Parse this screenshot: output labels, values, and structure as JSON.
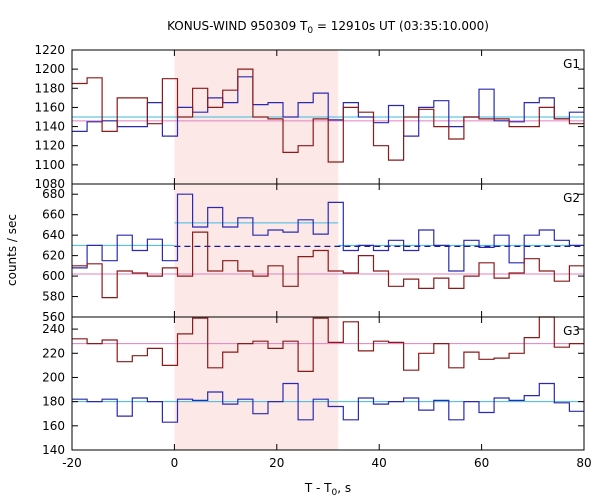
{
  "chart_data": {
    "type": "line",
    "title_prefix": "KONUS-WIND 950309 T",
    "title_sub": "0",
    "title_suffix": " = 12910s UT (03:35:10.000)",
    "xlabel_prefix": "T - T",
    "xlabel_sub": "0",
    "xlabel_suffix": ", s",
    "ylabel": "counts / sec",
    "xlim": [
      -20,
      80
    ],
    "xticks": [
      -20,
      0,
      20,
      40,
      60,
      80
    ],
    "highlight": {
      "x_start": 0,
      "x_end": 32,
      "color": "#fde8e8"
    },
    "bin_width": 2.944,
    "colors": {
      "red": "#8b1a1a",
      "blue": "#2a2ab0",
      "pink": "#e080c0",
      "cyan": "#40b8e0"
    },
    "panels": [
      {
        "label": "G1",
        "ylim": [
          1080,
          1220
        ],
        "yticks": [
          1080,
          1100,
          1120,
          1140,
          1160,
          1180,
          1200,
          1220
        ],
        "red": [
          1185,
          1191,
          1135,
          1170,
          1170,
          1143,
          1190,
          1150,
          1180,
          1160,
          1178,
          1200,
          1150,
          1148,
          1113,
          1120,
          1148,
          1103,
          1160,
          1155,
          1120,
          1105,
          1150,
          1158,
          1140,
          1127,
          1150,
          1148,
          1148,
          1140,
          1140,
          1160,
          1148,
          1143
        ],
        "blue": [
          1135,
          1145,
          1146,
          1140,
          1140,
          1165,
          1130,
          1160,
          1155,
          1170,
          1165,
          1192,
          1163,
          1165,
          1150,
          1165,
          1175,
          1147,
          1165,
          1150,
          1144,
          1162,
          1130,
          1160,
          1167,
          1140,
          1150,
          1179,
          1146,
          1145,
          1165,
          1170,
          1148,
          1155
        ],
        "blue_levels": [
          {
            "x0": -20,
            "x1": 80,
            "y": 1150
          }
        ],
        "red_levels": [
          {
            "x0": -20,
            "x1": 80,
            "y": 1146
          }
        ],
        "red_dashed": [],
        "blue_dashed": []
      },
      {
        "label": "G2",
        "ylim": [
          560,
          690
        ],
        "yticks": [
          560,
          580,
          600,
          620,
          640,
          660,
          680
        ],
        "red": [
          610,
          612,
          579,
          605,
          603,
          600,
          608,
          600,
          643,
          605,
          615,
          605,
          600,
          610,
          590,
          619,
          625,
          605,
          603,
          620,
          605,
          590,
          597,
          588,
          598,
          588,
          600,
          613,
          598,
          603,
          617,
          605,
          595,
          610
        ],
        "blue": [
          608,
          630,
          615,
          640,
          625,
          636,
          615,
          680,
          648,
          667,
          648,
          657,
          640,
          645,
          643,
          655,
          641,
          672,
          625,
          630,
          625,
          635,
          625,
          645,
          630,
          605,
          635,
          628,
          640,
          613,
          640,
          645,
          635,
          630
        ],
        "blue_levels": [
          {
            "x0": -20,
            "x1": 0,
            "y": 630
          },
          {
            "x0": 0,
            "x1": 32,
            "y": 652
          },
          {
            "x0": 32,
            "x1": 80,
            "y": 630
          }
        ],
        "red_levels": [
          {
            "x0": -20,
            "x1": 80,
            "y": 602
          }
        ],
        "red_dashed": [],
        "blue_dashed": [
          {
            "x0": 0,
            "x1": 80,
            "y": 629
          }
        ]
      },
      {
        "label": "G3",
        "ylim": [
          140,
          250
        ],
        "yticks": [
          140,
          160,
          180,
          200,
          220,
          240
        ],
        "red": [
          232,
          228,
          231,
          213,
          218,
          224,
          210,
          236,
          249,
          208,
          221,
          228,
          230,
          224,
          230,
          205,
          249,
          229,
          246,
          222,
          230,
          229,
          206,
          220,
          228,
          208,
          221,
          215,
          216,
          220,
          233,
          250,
          225,
          228
        ],
        "blue": [
          182,
          180,
          182,
          168,
          183,
          180,
          163,
          182,
          181,
          188,
          178,
          182,
          170,
          180,
          195,
          165,
          182,
          176,
          165,
          183,
          178,
          180,
          183,
          173,
          181,
          165,
          180,
          171,
          183,
          181,
          185,
          195,
          179,
          172
        ],
        "blue_levels": [
          {
            "x0": -20,
            "x1": 80,
            "y": 180
          }
        ],
        "red_levels": [
          {
            "x0": -20,
            "x1": 80,
            "y": 228
          }
        ],
        "red_dashed": [],
        "blue_dashed": []
      }
    ]
  }
}
